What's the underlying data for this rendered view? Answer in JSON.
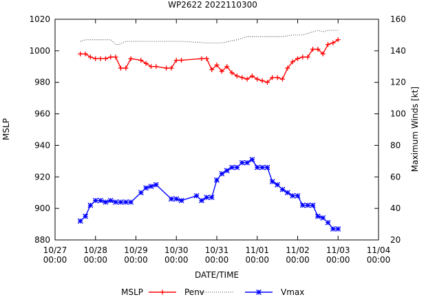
{
  "chart_data": {
    "type": "line",
    "title": "WP2622 2022110300",
    "xlabel": "DATE/TIME",
    "ylabel": "MSLP",
    "y2label": "Maximum Winds [kt]",
    "x_unit": "hours since 10/27 00:00",
    "xlim": [
      0,
      192
    ],
    "ylim": [
      880,
      1020
    ],
    "y2lim": [
      20,
      160
    ],
    "x_ticks": [
      {
        "value": 0,
        "date": "10/27",
        "time": "00:00"
      },
      {
        "value": 24,
        "date": "10/28",
        "time": "00:00"
      },
      {
        "value": 48,
        "date": "10/29",
        "time": "00:00"
      },
      {
        "value": 72,
        "date": "10/30",
        "time": "00:00"
      },
      {
        "value": 96,
        "date": "10/31",
        "time": "00:00"
      },
      {
        "value": 120,
        "date": "11/01",
        "time": "00:00"
      },
      {
        "value": 144,
        "date": "11/02",
        "time": "00:00"
      },
      {
        "value": 168,
        "date": "11/03",
        "time": "00:00"
      },
      {
        "value": 192,
        "date": "11/04",
        "time": "00:00"
      }
    ],
    "y_ticks": [
      880,
      900,
      920,
      940,
      960,
      980,
      1000,
      1020
    ],
    "y2_ticks": [
      20,
      40,
      60,
      80,
      100,
      120,
      140,
      160
    ],
    "grid": false,
    "legend_position": "bottom",
    "legend_title": "MSLP",
    "series": [
      {
        "name": "Penv",
        "axis": "left",
        "style": "solid",
        "marker": "plus",
        "color": "#ff0000",
        "x": [
          15,
          18,
          21,
          24,
          27,
          30,
          33,
          36,
          39,
          42,
          45,
          51,
          54,
          57,
          60,
          66,
          69,
          72,
          75,
          87,
          90,
          93,
          96,
          99,
          102,
          105,
          108,
          111,
          114,
          117,
          120,
          123,
          126,
          129,
          132,
          135,
          138,
          141,
          144,
          147,
          150,
          153,
          156,
          159,
          162,
          165,
          168
        ],
        "values": [
          998,
          998,
          996,
          995,
          995,
          995,
          996,
          996,
          989,
          989,
          995,
          994,
          992,
          990,
          990,
          989,
          989,
          994,
          994,
          995,
          995,
          988,
          991,
          987,
          990,
          986,
          984,
          983,
          982,
          984,
          982,
          981,
          980,
          983,
          983,
          982,
          989,
          993,
          995,
          996,
          996,
          1001,
          1001,
          998,
          1004,
          1005,
          1007
        ]
      },
      {
        "name": "Vmax",
        "axis": "right",
        "style": "solid",
        "marker": "star",
        "color": "#0000ff",
        "x": [
          15,
          18,
          21,
          24,
          27,
          30,
          33,
          36,
          39,
          42,
          45,
          51,
          54,
          57,
          60,
          69,
          72,
          75,
          84,
          87,
          90,
          93,
          96,
          99,
          102,
          105,
          108,
          111,
          114,
          117,
          120,
          123,
          126,
          129,
          132,
          135,
          138,
          141,
          144,
          147,
          150,
          153,
          156,
          159,
          162,
          165,
          168
        ],
        "values": [
          32,
          35,
          42,
          45,
          45,
          44,
          45,
          44,
          44,
          44,
          44,
          50,
          53,
          54,
          55,
          46,
          46,
          45,
          48,
          45,
          47,
          47,
          58,
          62,
          64,
          66,
          66,
          69,
          69,
          71,
          66,
          66,
          66,
          57,
          55,
          52,
          50,
          48,
          48,
          42,
          42,
          42,
          35,
          34,
          31,
          27,
          27
        ]
      },
      {
        "name": "",
        "axis": "right",
        "style": "dotted",
        "color": "#000000",
        "x": [
          15,
          18,
          27,
          33,
          36,
          38,
          42,
          54,
          75,
          90,
          99,
          108,
          114,
          120,
          126,
          132,
          135,
          141,
          147,
          156,
          159,
          162,
          168
        ],
        "values": [
          146,
          147,
          147,
          147,
          144,
          144,
          146,
          146,
          146,
          145,
          145,
          147,
          149,
          149,
          149,
          149,
          149,
          150,
          150,
          153,
          152,
          153,
          153
        ]
      }
    ]
  }
}
